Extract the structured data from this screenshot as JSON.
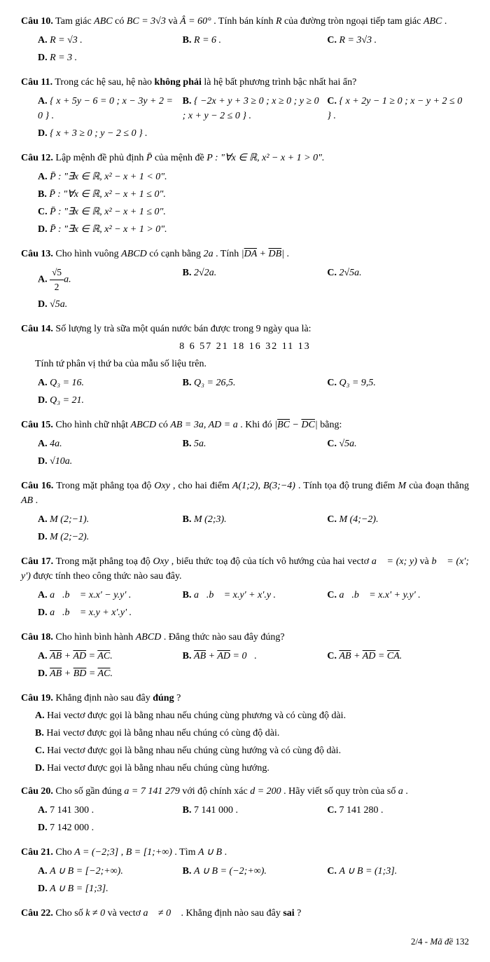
{
  "q10": {
    "label": "Câu 10.",
    "text_a": " Tam giác ",
    "abc": "ABC",
    "text_b": " có ",
    "bc": "BC = 3√3",
    "and": " và ",
    "A": "Â = 60°",
    "text_c": ". Tính bán kính ",
    "R": "R",
    "text_d": " của đường tròn ngoại tiếp tam giác ",
    "abc2": "ABC",
    "dot": " .",
    "opts": {
      "A": "R = √3 .",
      "B": "R = 6 .",
      "C": "R = 3√3 .",
      "D": "R = 3 ."
    }
  },
  "q11": {
    "label": "Câu 11.",
    "text": " Trong các hệ sau, hệ nào ",
    "bold": "không phải",
    "text2": " là hệ bất phương trình bậc nhất hai ẩn?",
    "opts": {
      "A": "{ x + 5y − 6 = 0 ; x − 3y + 2 = 0 } .",
      "B": "{ −2x + y + 3 ≥ 0 ; x ≥ 0 ; y ≥ 0 ; x + y − 2 ≤ 0 } .",
      "C": "{ x + 2y − 1 ≥ 0 ; x − y + 2 ≤ 0 } .",
      "D": "{ x + 3 ≥ 0 ; y − 2 ≤ 0 } ."
    }
  },
  "q12": {
    "label": "Câu 12.",
    "text": " Lập mệnh đề phủ định ",
    "pbar": "P̄",
    "text2": " của mệnh đề ",
    "P": "P : \"∀x ∈ ℝ, x² − x + 1 > 0\".",
    "opts": {
      "A": "P̄ : \"∃x ∈ ℝ, x² − x + 1 < 0\".",
      "B": "P̄ : \"∀x ∈ ℝ, x² − x + 1 ≤ 0\".",
      "C": "P̄ : \"∃x ∈ ℝ, x² − x + 1 ≤ 0\".",
      "D": "P̄ : \"∃x ∈ ℝ, x² − x + 1 > 0\"."
    }
  },
  "q13": {
    "label": "Câu 13.",
    "text": " Cho hình vuông ",
    "abcd": "ABCD",
    "text2": " có cạnh bằng ",
    "twoa": "2a",
    "text3": " . Tính ",
    "expr": "| DA + DB |",
    "dot": " .",
    "opts": {
      "A_num": "√5",
      "A_den": "2",
      "A_suffix": "a.",
      "B": "2√2a.",
      "C": "2√5a.",
      "D": "√5a."
    }
  },
  "q14": {
    "label": "Câu 14.",
    "text": " Số lượng ly trà sữa một quán nước bán được trong 9 ngày qua là:",
    "data": "8    6    57    21    18    16    32    11    13",
    "sub": "Tính tứ phân vị thứ ba của mẫu số liệu trên.",
    "opts": {
      "A": "Q₃ = 16.",
      "B": "Q₃ = 26,5.",
      "C": "Q₃ = 9,5.",
      "D": "Q₃ = 21."
    }
  },
  "q15": {
    "label": "Câu 15.",
    "text": " Cho hình chữ nhật ",
    "abcd": "ABCD",
    "text2": " có ",
    "ab": "AB = 3a, AD = a",
    "text3": " . Khi đó ",
    "expr": "| BC − DC |",
    "text4": " bằng:",
    "opts": {
      "A": "4a.",
      "B": "5a.",
      "C": "√5a.",
      "D": "√10a."
    }
  },
  "q16": {
    "label": "Câu 16.",
    "text": " Trong mặt phẳng tọa độ ",
    "oxy": "Oxy",
    "text2": " , cho hai điểm ",
    "pts": "A(1;2), B(3;−4)",
    "text3": " . Tính tọa độ trung điểm ",
    "M": "M",
    "text4": " của đoạn thẳng ",
    "AB": "AB",
    "dot": " .",
    "opts": {
      "A": "M (2;−1).",
      "B": "M (2;3).",
      "C": "M (4;−2).",
      "D": "M (2;−2)."
    }
  },
  "q17": {
    "label": "Câu 17.",
    "text": " Trong mặt phẳng toạ độ ",
    "oxy": "Oxy",
    "text2": ", biểu thức toạ độ của tích vô hướng của hai vectơ ",
    "a": "a⃗ = (x; y)",
    "and": " và ",
    "b": "b⃗ = (x'; y')",
    "text3": " được tính theo công thức nào sau đây.",
    "opts": {
      "A": "a⃗.b⃗ = x.x' − y.y' .",
      "B": "a⃗.b⃗ = x.y' + x'.y .",
      "C": "a⃗.b⃗ = x.x' + y.y' .",
      "D": "a⃗.b⃗ = x.y + x'.y' ."
    }
  },
  "q18": {
    "label": "Câu 18.",
    "text": " Cho hình bình hành ",
    "abcd": "ABCD",
    "text2": " . Đẳng thức nào sau đây đúng?",
    "opts": {
      "A": "AB + AD = AC.",
      "B": "AB + AD = 0⃗.",
      "C": "AB + AD = CA.",
      "D": "AB + BD = AC."
    }
  },
  "q19": {
    "label": "Câu 19.",
    "text": " Khẳng định nào sau đây ",
    "bold": "đúng",
    "q": "?",
    "opts": {
      "A": "Hai vectơ được gọi là bằng nhau nếu chúng cùng phương và có cùng độ dài.",
      "B": "Hai vectơ được gọi là bằng nhau nếu chúng có cùng độ dài.",
      "C": "Hai vectơ được gọi là bằng nhau nếu chúng cùng hướng và có cùng độ dài.",
      "D": "Hai vectơ được gọi là bằng nhau nếu chúng cùng hướng."
    }
  },
  "q20": {
    "label": "Câu 20.",
    "text": " Cho số gần đúng ",
    "a": "a = 7 141 279",
    "text2": " với độ chính xác ",
    "d": "d = 200",
    "text3": " . Hãy viết số quy tròn của số ",
    "a2": "a",
    "dot": ".",
    "opts": {
      "A": "7 141 300 .",
      "B": "7 141 000 .",
      "C": "7 141 280 .",
      "D": "7 142 000 ."
    }
  },
  "q21": {
    "label": "Câu 21.",
    "text": " Cho ",
    "A": "A = (−2;3]",
    "comma": " , ",
    "B": "B = [1;+∞)",
    "text2": " . Tìm ",
    "aub": "A ∪ B",
    "dot": " .",
    "opts": {
      "A": "A ∪ B = [−2;+∞).",
      "B": "A ∪ B = (−2;+∞).",
      "C": "A ∪ B = (1;3].",
      "D": "A ∪ B = [1;3]."
    }
  },
  "q22": {
    "label": "Câu 22.",
    "text": " Cho số ",
    "k": "k ≠ 0",
    "text2": " và vectơ ",
    "a": "a⃗ ≠ 0⃗",
    "text3": " . Khẳng định nào sau đây ",
    "bold": "sai",
    "q": "?"
  },
  "footer": {
    "page": "2/4 - ",
    "label": "Mã đề",
    "code": " 132"
  }
}
